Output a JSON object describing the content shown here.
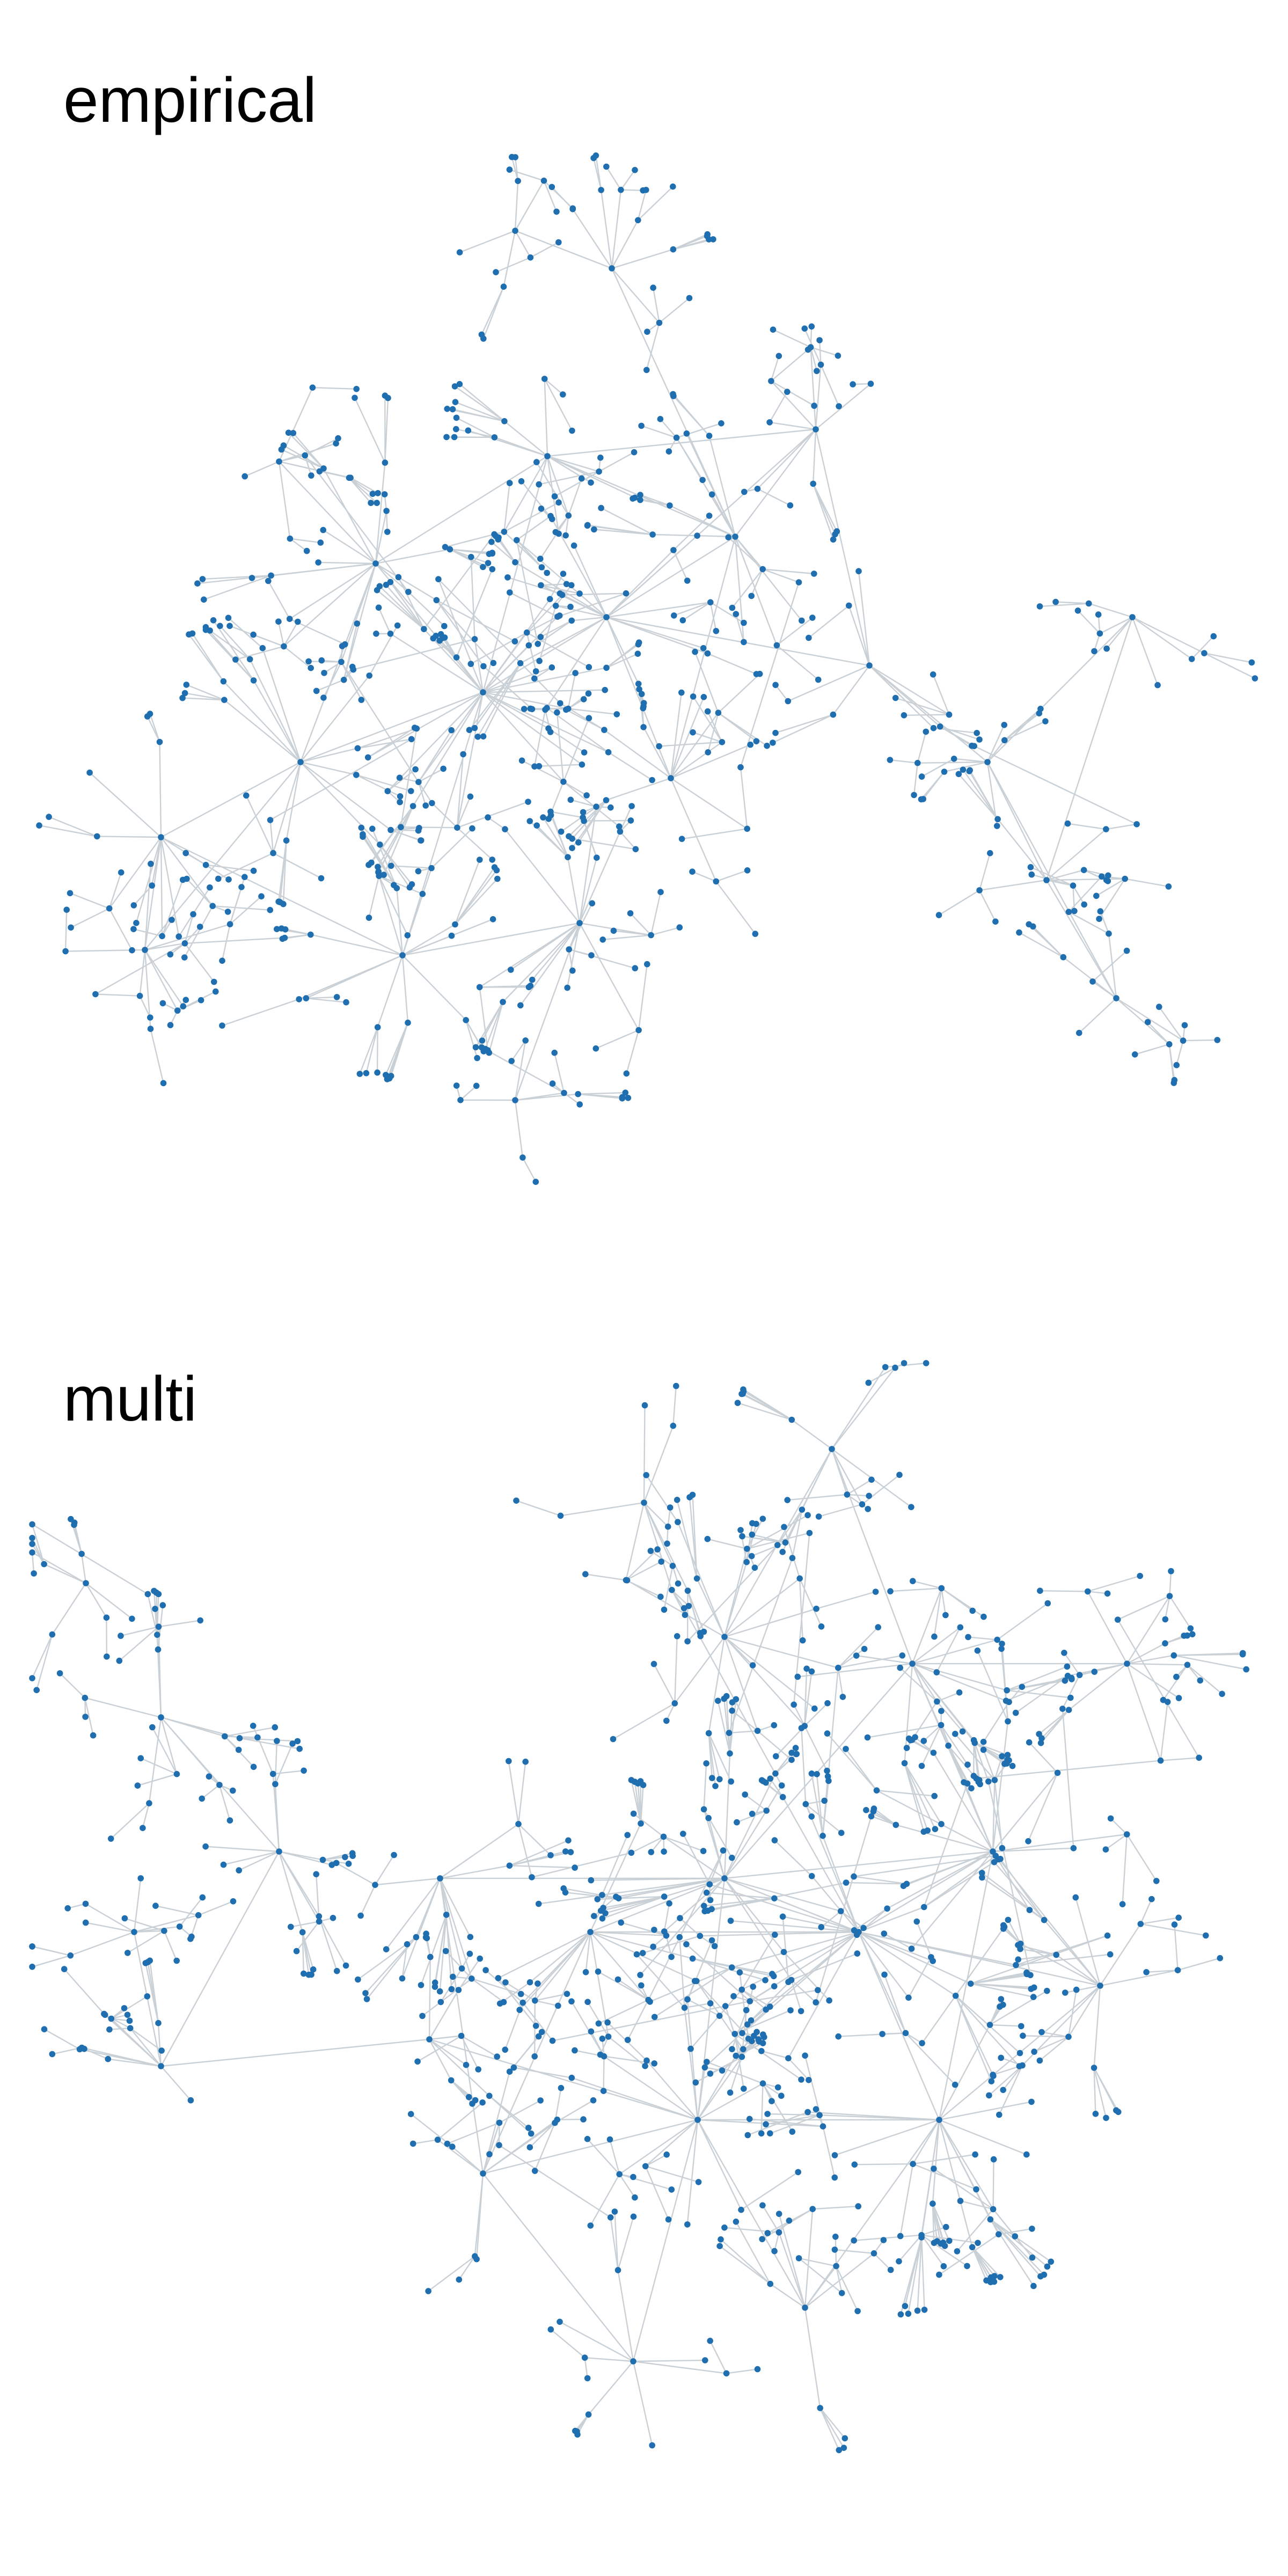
{
  "panels": [
    {
      "id": "empirical",
      "title": "empirical"
    },
    {
      "id": "multi",
      "title": "multi"
    }
  ],
  "colors": {
    "node": "#1f6fb0",
    "edge": "#c9d0d6",
    "background": "#ffffff",
    "title": "#000000"
  }
}
